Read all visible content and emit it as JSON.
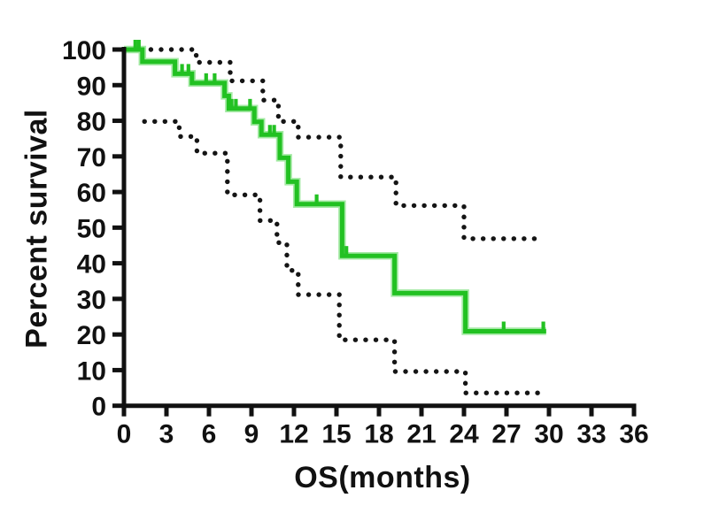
{
  "figure": {
    "background_color": "#ffffff",
    "axis_color": "#111111",
    "tick_label_color": "#111111"
  },
  "chart_data": {
    "type": "line",
    "subtype": "kaplan-meier-survival-step",
    "title": "",
    "xlabel": "OS(months)",
    "ylabel": "Percent survival",
    "xlim": [
      0,
      36
    ],
    "ylim": [
      0,
      100
    ],
    "x_ticks": [
      0,
      3,
      6,
      9,
      12,
      15,
      18,
      21,
      24,
      27,
      30,
      33,
      36
    ],
    "y_ticks": [
      0,
      10,
      20,
      30,
      40,
      50,
      60,
      70,
      80,
      90,
      100
    ],
    "grid": false,
    "legend": null,
    "series": [
      {
        "name": "survival-estimate",
        "style": "solid-step",
        "color": "#22c122",
        "halo_color": "#a4e9a4",
        "points": [
          [
            0,
            100
          ],
          [
            1.3,
            100
          ],
          [
            1.3,
            96.6
          ],
          [
            3.6,
            96.6
          ],
          [
            3.6,
            93.2
          ],
          [
            4.8,
            93.2
          ],
          [
            4.8,
            90.6
          ],
          [
            7.1,
            90.6
          ],
          [
            7.1,
            87.0
          ],
          [
            7.4,
            87.0
          ],
          [
            7.4,
            83.4
          ],
          [
            9.2,
            83.4
          ],
          [
            9.2,
            79.7
          ],
          [
            9.7,
            79.7
          ],
          [
            9.7,
            76.1
          ],
          [
            11.0,
            76.1
          ],
          [
            11.0,
            69.6
          ],
          [
            11.6,
            69.6
          ],
          [
            11.6,
            62.9
          ],
          [
            12.2,
            62.9
          ],
          [
            12.2,
            56.6
          ],
          [
            15.4,
            56.6
          ],
          [
            15.4,
            42.1
          ],
          [
            19.1,
            42.1
          ],
          [
            19.1,
            31.6
          ],
          [
            24.1,
            31.6
          ],
          [
            24.1,
            20.9
          ],
          [
            29.8,
            20.9
          ]
        ],
        "censor_marks": [
          [
            0.8,
            100
          ],
          [
            1.05,
            100
          ],
          [
            4.1,
            93.2
          ],
          [
            4.55,
            93.2
          ],
          [
            5.8,
            90.6
          ],
          [
            6.4,
            90.6
          ],
          [
            7.6,
            83.4
          ],
          [
            7.9,
            83.4
          ],
          [
            8.9,
            83.4
          ],
          [
            10.3,
            76.1
          ],
          [
            10.6,
            76.1
          ],
          [
            13.6,
            56.6
          ],
          [
            15.7,
            42.1
          ],
          [
            26.8,
            20.9
          ],
          [
            29.6,
            20.9
          ]
        ]
      },
      {
        "name": "ci-upper-bound",
        "style": "dotted-step",
        "color": "#151515",
        "points": [
          [
            1.9,
            100
          ],
          [
            5.1,
            100
          ],
          [
            5.1,
            96.4
          ],
          [
            7.5,
            96.4
          ],
          [
            7.5,
            91.2
          ],
          [
            9.8,
            91.2
          ],
          [
            9.8,
            85.8
          ],
          [
            10.9,
            85.8
          ],
          [
            10.9,
            79.8
          ],
          [
            12.3,
            79.8
          ],
          [
            12.3,
            75.4
          ],
          [
            15.3,
            75.4
          ],
          [
            15.3,
            64.2
          ],
          [
            19.2,
            64.2
          ],
          [
            19.2,
            56.2
          ],
          [
            24.0,
            56.2
          ],
          [
            24.0,
            46.9
          ],
          [
            29.5,
            46.9
          ]
        ]
      },
      {
        "name": "ci-lower-bound",
        "style": "dotted-step",
        "color": "#151515",
        "points": [
          [
            1.45,
            79.8
          ],
          [
            3.9,
            79.8
          ],
          [
            3.9,
            75.6
          ],
          [
            5.15,
            75.6
          ],
          [
            5.15,
            70.9
          ],
          [
            7.3,
            70.9
          ],
          [
            7.3,
            59.2
          ],
          [
            9.6,
            59.2
          ],
          [
            9.6,
            52.0
          ],
          [
            10.8,
            52.0
          ],
          [
            10.8,
            45.8
          ],
          [
            11.5,
            45.8
          ],
          [
            11.5,
            38.0
          ],
          [
            12.3,
            38.0
          ],
          [
            12.3,
            31.2
          ],
          [
            15.2,
            31.2
          ],
          [
            15.2,
            18.5
          ],
          [
            19.1,
            18.5
          ],
          [
            19.1,
            9.6
          ],
          [
            24.1,
            9.6
          ],
          [
            24.1,
            3.6
          ],
          [
            29.5,
            3.6
          ]
        ]
      }
    ]
  }
}
